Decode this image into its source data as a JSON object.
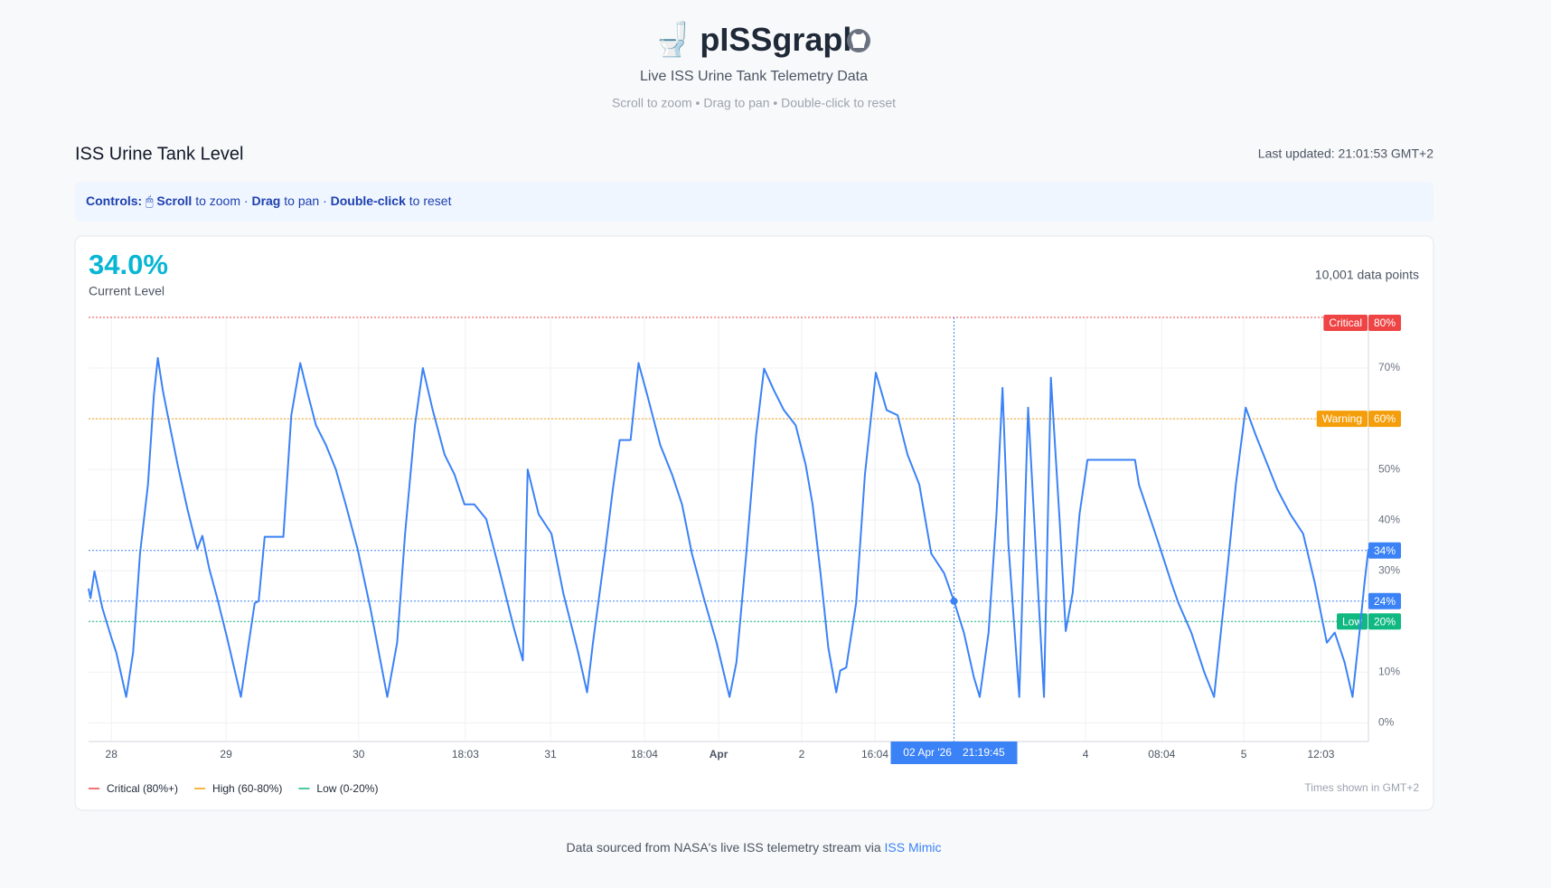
{
  "header": {
    "icon": "🚽",
    "title": "pISSgraph",
    "subtitle": "Live ISS Urine Tank Telemetry Data",
    "hint": "Scroll to zoom • Drag to pan • Double-click to reset"
  },
  "section": {
    "title": "ISS Urine Tank Level",
    "updated": "Last updated: 21:01:53 GMT+2"
  },
  "controls": [
    {
      "text": "Controls:",
      "bold": true
    },
    {
      "text": " 🖱 ",
      "bold": false
    },
    {
      "text": "Scroll",
      "bold": true
    },
    {
      "text": " to zoom · ",
      "bold": false
    },
    {
      "text": "Drag",
      "bold": true
    },
    {
      "text": " to pan · ",
      "bold": false
    },
    {
      "text": "Double-click",
      "bold": true
    },
    {
      "text": " to reset",
      "bold": false
    }
  ],
  "stats": {
    "current": "34.0%",
    "current_label": "Current Level",
    "points": "10,001 data points"
  },
  "chart_data": {
    "type": "line",
    "color": "#3b82f6",
    "grid": true,
    "x": [
      0,
      15,
      46,
      108,
      178,
      216,
      294,
      348,
      402,
      464,
      510,
      541,
      580,
      634,
      696,
      773,
      850,
      889,
      943,
      1005,
      1082,
      1190,
      1252,
      1298,
      1329,
      1376,
      1522,
      1584,
      1654,
      1716,
      1777,
      1855,
      1932,
      2009,
      2102,
      2202,
      2334,
      2411,
      2473,
      2550,
      2612,
      2689,
      2782,
      2859,
      2937,
      3014,
      3107,
      3207,
      3323,
      3393,
      3431,
      3516,
      3617,
      3709,
      3825,
      3895,
      3941,
      4034,
      4096,
      4150,
      4235,
      4297,
      4366,
      4467,
      4559,
      4637,
      4714,
      4807,
      4907,
      5008,
      5062,
      5139,
      5216,
      5278,
      5355,
      5433,
      5525,
      5603,
      5657,
      5719,
      5780,
      5842,
      5873,
      5920,
      5997,
      6066,
      6151,
      6236,
      6321,
      6399,
      6491,
      6584,
      6685,
      6762,
      6839,
      6917,
      6963,
      7032,
      7094,
      7141,
      7187,
      7272,
      7341,
      7403,
      7465,
      7519,
      7589,
      7635,
      7689,
      7743,
      7805,
      8176,
      8207,
      8284,
      8362,
      8462,
      8516,
      8616,
      8717,
      8794,
      8887,
      8964,
      9041,
      9119,
      9212,
      9289,
      9389,
      9490,
      9582,
      9675,
      9737,
      9814,
      9876,
      9930,
      9969,
      10000
    ],
    "values": [
      26.5,
      24.6,
      29.9,
      22.6,
      16.8,
      13.9,
      5.1,
      13.9,
      33.4,
      47,
      64.6,
      72,
      65.6,
      58.7,
      50.9,
      42.1,
      34.3,
      36.9,
      30.4,
      24.6,
      16.8,
      5.1,
      15.8,
      23.6,
      24,
      36.7,
      36.7,
      60.7,
      71,
      64.6,
      58.7,
      54.8,
      50,
      43.1,
      34.3,
      22.6,
      5.1,
      15.8,
      37.3,
      58.7,
      70,
      61.7,
      52.9,
      49,
      43.1,
      43.1,
      40.2,
      30.4,
      18.7,
      12.3,
      50,
      41.2,
      37.3,
      25.6,
      13.9,
      6,
      15.8,
      33.4,
      46,
      55.8,
      55.8,
      71,
      64.6,
      54.8,
      49,
      43.1,
      33.4,
      24.6,
      15.8,
      5.1,
      11.9,
      33.4,
      56.8,
      69.9,
      65.6,
      61.7,
      58.7,
      50.9,
      43.1,
      29.5,
      14.8,
      6,
      10.3,
      10.9,
      23.6,
      49,
      69.1,
      61.7,
      60.7,
      52.9,
      47,
      33.4,
      29.5,
      24,
      17.8,
      9,
      5.1,
      17.8,
      41.2,
      66.1,
      35.3,
      5.1,
      62.2,
      33.4,
      5.1,
      68.1,
      39.2,
      18.1,
      25.6,
      41.2,
      51.9,
      51.9,
      47,
      41.2,
      35.3,
      27.5,
      23.6,
      17.8,
      10,
      5.1,
      27.5,
      47,
      62.2,
      56.8,
      50.9,
      46,
      41.2,
      37.3,
      27.5,
      15.8,
      17.8,
      11.9,
      5.1,
      17.8,
      27.5,
      34.3
    ],
    "xlim": [
      0,
      10000
    ],
    "xticks": [
      {
        "value": 178,
        "label": "28"
      },
      {
        "value": 1074,
        "label": "29"
      },
      {
        "value": 2110,
        "label": "30"
      },
      {
        "value": 2944,
        "label": "18:03"
      },
      {
        "value": 3609,
        "label": "31"
      },
      {
        "value": 4343,
        "label": "18:04"
      },
      {
        "value": 4923,
        "label": "Apr",
        "bold": true
      },
      {
        "value": 5572,
        "label": "2"
      },
      {
        "value": 6144,
        "label": "16:04"
      },
      {
        "value": 7790,
        "label": "4"
      },
      {
        "value": 8385,
        "label": "08:04"
      },
      {
        "value": 9026,
        "label": "5"
      },
      {
        "value": 9629,
        "label": "12:03"
      }
    ],
    "ylim": [
      -3.7,
      80
    ],
    "yticks": [
      {
        "value": 0,
        "label": "0%"
      },
      {
        "value": 10,
        "label": "10%"
      },
      {
        "value": 20,
        "label": "20%"
      },
      {
        "value": 30,
        "label": "30%"
      },
      {
        "value": 40,
        "label": "40%"
      },
      {
        "value": 50,
        "label": "50%"
      },
      {
        "value": 60,
        "label": "60%"
      },
      {
        "value": 70,
        "label": "70%"
      }
    ],
    "reference_lines": [
      {
        "value": 80,
        "label": "80%",
        "name": "Critical",
        "color": "#ef4444"
      },
      {
        "value": 60,
        "label": "60%",
        "name": "Warning",
        "color": "#f59e0b"
      },
      {
        "value": 34,
        "label": "34%",
        "color": "#3b82f6"
      },
      {
        "value": 20,
        "label": "20%",
        "name": "Low",
        "color": "#10b981"
      }
    ],
    "cursor": {
      "x": 6762,
      "value": 24,
      "label": "24%",
      "date": "02 Apr '26",
      "time": "21:19:45",
      "color": "#3b82f6"
    },
    "legend": [
      {
        "label": "Critical (80%+)",
        "color": "#ef4444"
      },
      {
        "label": "High (60-80%)",
        "color": "#f59e0b"
      },
      {
        "label": "Low (0-20%)",
        "color": "#10b981"
      }
    ],
    "note": "Times shown in GMT+2"
  },
  "footer": {
    "text": "Data sourced from NASA's live ISS telemetry stream via ",
    "link": "ISS Mimic"
  }
}
